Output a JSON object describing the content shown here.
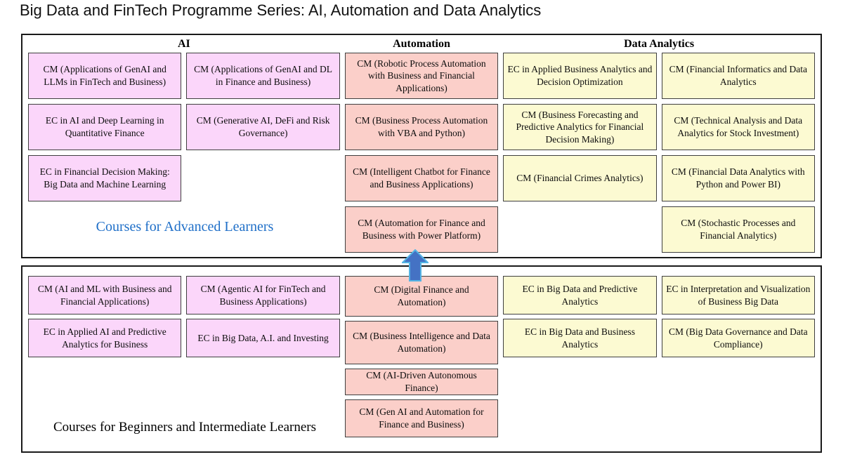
{
  "title": "Big Data and FinTech Programme Series: AI, Automation and Data Analytics",
  "colors": {
    "ai_fill": "#FBD6FA",
    "automation_fill": "#FBCFC9",
    "analytics_fill": "#FCFAD2",
    "advanced_caption_text": "#1F6FC8",
    "arrow_fill": "#4472C4",
    "arrow_outline": "#54B4E4"
  },
  "headers": {
    "ai": "AI",
    "automation": "Automation",
    "data_analytics": "Data Analytics"
  },
  "advanced": {
    "caption": "Courses for Advanced Learners",
    "ai_col1": [
      "CM (Applications of GenAI and LLMs in FinTech and Business)",
      "EC in AI and Deep Learning in Quantitative Finance",
      "EC in Financial Decision Making: Big Data and Machine Learning"
    ],
    "ai_col2": [
      "CM (Applications of GenAI and DL in Finance and Business)",
      "CM (Generative AI, DeFi and Risk Governance)"
    ],
    "automation": [
      "CM (Robotic Process Automation with Business and Financial Applications)",
      "CM (Business Process Automation with VBA and Python)",
      "CM (Intelligent Chatbot for Finance and Business Applications)",
      "CM (Automation for Finance and Business with Power Platform)"
    ],
    "analytics_col1": [
      "EC in Applied Business Analytics and Decision Optimization",
      "CM (Business Forecasting and Predictive Analytics for Financial Decision Making)",
      "CM (Financial Crimes Analytics)"
    ],
    "analytics_col2": [
      "CM (Financial Informatics and Data Analytics",
      "CM (Technical Analysis and Data Analytics for Stock Investment)",
      "CM (Financial Data Analytics with Python and Power BI)",
      "CM (Stochastic Processes and Financial Analytics)"
    ]
  },
  "beginner": {
    "caption": "Courses for Beginners and Intermediate Learners",
    "ai_col1": [
      "CM (AI and ML with Business and Financial Applications)",
      "EC in Applied AI and Predictive Analytics for Business"
    ],
    "ai_col2": [
      "CM (Agentic AI for FinTech and Business Applications)",
      "EC in Big Data, A.I. and Investing"
    ],
    "automation": [
      "CM (Digital Finance and Automation)",
      "CM (Business Intelligence and Data Automation)",
      "CM (AI-Driven Autonomous Finance)",
      "CM (Gen AI and Automation for Finance and Business)"
    ],
    "analytics_col1": [
      "EC in Big Data and Predictive Analytics",
      "EC in Big Data and Business Analytics"
    ],
    "analytics_col2": [
      "EC in Interpretation and Visualization of Business Big Data",
      "CM (Big Data Governance and Data Compliance)"
    ]
  }
}
